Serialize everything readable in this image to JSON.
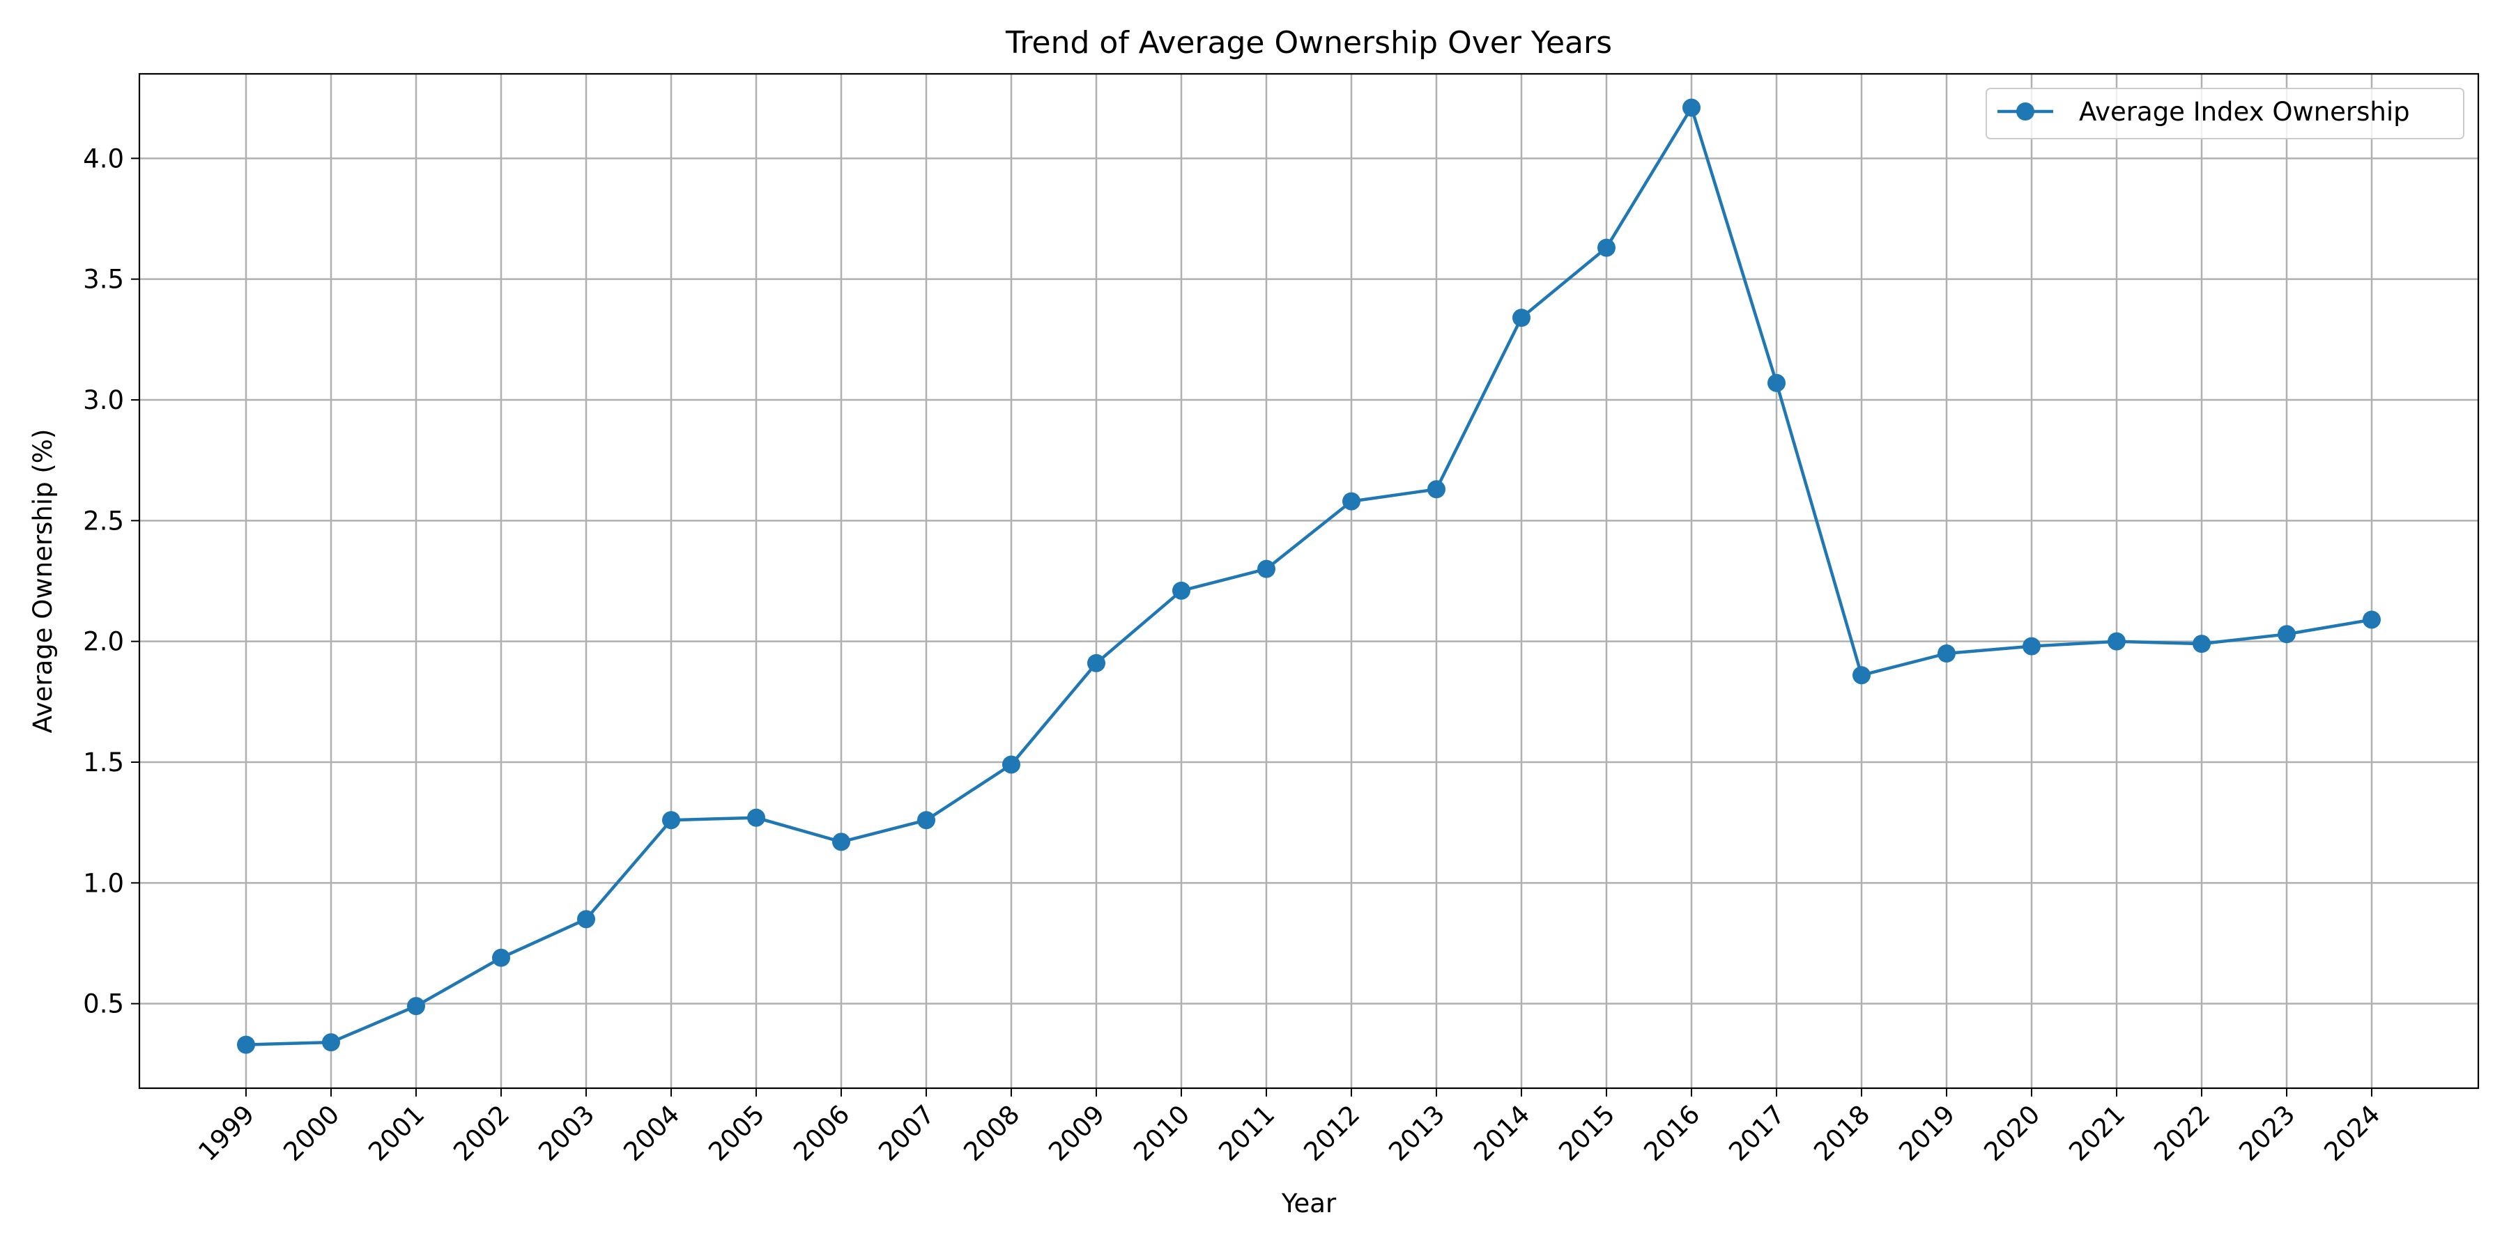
{
  "chart_data": {
    "type": "line",
    "title": "Trend of Average Ownership Over Years",
    "xlabel": "Year",
    "ylabel": "Average Ownership (%)",
    "categories": [
      "1999",
      "2000",
      "2001",
      "2002",
      "2003",
      "2004",
      "2005",
      "2006",
      "2007",
      "2008",
      "2009",
      "2010",
      "2011",
      "2012",
      "2013",
      "2014",
      "2015",
      "2016",
      "2017",
      "2018",
      "2019",
      "2020",
      "2021",
      "2022",
      "2023",
      "2024"
    ],
    "series": [
      {
        "name": "Average Index Ownership",
        "color": "#1f77b4",
        "marker": "circle",
        "values": [
          0.33,
          0.34,
          0.49,
          0.69,
          0.85,
          1.26,
          1.27,
          1.17,
          1.26,
          1.49,
          1.91,
          2.21,
          2.3,
          2.58,
          2.63,
          3.34,
          3.63,
          4.21,
          3.07,
          1.86,
          1.95,
          1.98,
          2.0,
          1.99,
          2.03,
          2.09
        ]
      }
    ],
    "ylim": [
      0.15,
      4.35
    ],
    "yticks": [
      0.5,
      1.0,
      1.5,
      2.0,
      2.5,
      3.0,
      3.5,
      4.0
    ],
    "ytick_labels": [
      "0.5",
      "1.0",
      "1.5",
      "2.0",
      "2.5",
      "3.0",
      "3.5",
      "4.0"
    ],
    "xtick_rotation": -45,
    "grid": true,
    "legend": "top-right"
  }
}
